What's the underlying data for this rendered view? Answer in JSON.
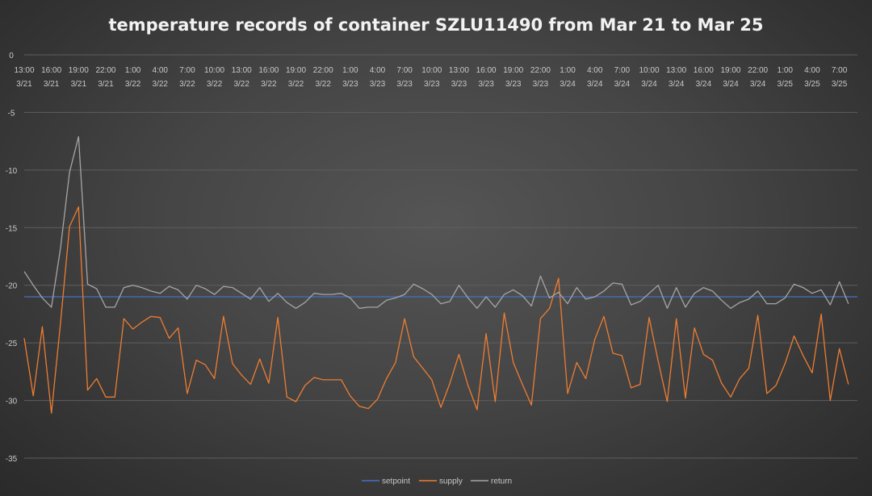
{
  "chart_data": {
    "type": "line",
    "title": "temperature records of container SZLU11490 from Mar 21 to Mar 25",
    "xlabel": "",
    "ylabel": "",
    "ylim": [
      -35,
      0
    ],
    "yticks": [
      0,
      -5,
      -10,
      -15,
      -20,
      -25,
      -30,
      -35
    ],
    "grid": true,
    "legend_position": "bottom",
    "x_tick_labels": [
      {
        "time": "13:00",
        "date": "3/21"
      },
      {
        "time": "16:00",
        "date": "3/21"
      },
      {
        "time": "19:00",
        "date": "3/21"
      },
      {
        "time": "22:00",
        "date": "3/21"
      },
      {
        "time": "1:00",
        "date": "3/22"
      },
      {
        "time": "4:00",
        "date": "3/22"
      },
      {
        "time": "7:00",
        "date": "3/22"
      },
      {
        "time": "10:00",
        "date": "3/22"
      },
      {
        "time": "13:00",
        "date": "3/22"
      },
      {
        "time": "16:00",
        "date": "3/22"
      },
      {
        "time": "19:00",
        "date": "3/22"
      },
      {
        "time": "22:00",
        "date": "3/22"
      },
      {
        "time": "1:00",
        "date": "3/23"
      },
      {
        "time": "4:00",
        "date": "3/23"
      },
      {
        "time": "7:00",
        "date": "3/23"
      },
      {
        "time": "10:00",
        "date": "3/23"
      },
      {
        "time": "13:00",
        "date": "3/23"
      },
      {
        "time": "16:00",
        "date": "3/23"
      },
      {
        "time": "19:00",
        "date": "3/23"
      },
      {
        "time": "22:00",
        "date": "3/23"
      },
      {
        "time": "1:00",
        "date": "3/24"
      },
      {
        "time": "4:00",
        "date": "3/24"
      },
      {
        "time": "7:00",
        "date": "3/24"
      },
      {
        "time": "10:00",
        "date": "3/24"
      },
      {
        "time": "13:00",
        "date": "3/24"
      },
      {
        "time": "16:00",
        "date": "3/24"
      },
      {
        "time": "19:00",
        "date": "3/24"
      },
      {
        "time": "22:00",
        "date": "3/24"
      },
      {
        "time": "1:00",
        "date": "3/25"
      },
      {
        "time": "4:00",
        "date": "3/25"
      },
      {
        "time": "7:00",
        "date": "3/25"
      }
    ],
    "x_tick_every": 3,
    "series": [
      {
        "name": "setpoint",
        "color": "#4472c4",
        "values": [
          -21,
          -21,
          -21,
          -21,
          -21,
          -21,
          -21,
          -21,
          -21,
          -21,
          -21,
          -21,
          -21,
          -21,
          -21,
          -21,
          -21,
          -21,
          -21,
          -21,
          -21,
          -21,
          -21,
          -21,
          -21,
          -21,
          -21,
          -21,
          -21,
          -21,
          -21,
          -21,
          -21,
          -21,
          -21,
          -21,
          -21,
          -21,
          -21,
          -21,
          -21,
          -21,
          -21,
          -21,
          -21,
          -21,
          -21,
          -21,
          -21,
          -21,
          -21,
          -21,
          -21,
          -21,
          -21,
          -21,
          -21,
          -21,
          -21,
          -21,
          -21,
          -21,
          -21,
          -21,
          -21,
          -21,
          -21,
          -21,
          -21,
          -21,
          -21,
          -21,
          -21,
          -21,
          -21,
          -21,
          -21,
          -21,
          -21,
          -21,
          -21,
          -21,
          -21,
          -21,
          -21,
          -21,
          -21,
          -21,
          -21,
          -21,
          -21,
          -21,
          -21
        ]
      },
      {
        "name": "supply",
        "color": "#ed7d31",
        "values": [
          -24.6,
          -29.6,
          -23.6,
          -31.1,
          -23.3,
          -14.9,
          -13.2,
          -29.1,
          -28.1,
          -29.7,
          -29.7,
          -22.9,
          -23.8,
          -23.2,
          -22.7,
          -22.8,
          -24.6,
          -23.7,
          -29.4,
          -26.5,
          -26.9,
          -28.1,
          -22.7,
          -26.8,
          -27.8,
          -28.6,
          -26.4,
          -28.5,
          -22.8,
          -29.7,
          -30.1,
          -28.7,
          -28.0,
          -28.2,
          -28.2,
          -28.2,
          -29.6,
          -30.5,
          -30.7,
          -29.9,
          -28.1,
          -26.7,
          -22.9,
          -26.2,
          -27.2,
          -28.2,
          -30.6,
          -28.5,
          -26.0,
          -28.7,
          -30.8,
          -24.2,
          -30.1,
          -22.4,
          -26.7,
          -28.6,
          -30.4,
          -22.9,
          -22.0,
          -19.4,
          -29.4,
          -26.7,
          -28.1,
          -24.7,
          -22.7,
          -25.9,
          -26.1,
          -28.9,
          -28.6,
          -22.8,
          -26.6,
          -30.1,
          -22.9,
          -29.8,
          -23.7,
          -26.0,
          -26.5,
          -28.5,
          -29.7,
          -28.1,
          -27.2,
          -22.6,
          -29.4,
          -28.7,
          -26.8,
          -24.4,
          -26.1,
          -27.6,
          -22.5,
          -30.0,
          -25.5,
          -28.6
        ]
      },
      {
        "name": "return",
        "color": "#a5a5a5",
        "values": [
          -18.8,
          -20.0,
          -21.1,
          -21.9,
          -16.8,
          -10.2,
          -7.1,
          -19.9,
          -20.3,
          -21.9,
          -21.9,
          -20.2,
          -20.0,
          -20.2,
          -20.5,
          -20.7,
          -20.1,
          -20.4,
          -21.2,
          -20.0,
          -20.3,
          -20.8,
          -20.1,
          -20.2,
          -20.7,
          -21.2,
          -20.2,
          -21.4,
          -20.7,
          -21.5,
          -22.0,
          -21.5,
          -20.7,
          -20.8,
          -20.8,
          -20.7,
          -21.1,
          -22.0,
          -21.9,
          -21.9,
          -21.3,
          -21.1,
          -20.8,
          -19.9,
          -20.3,
          -20.8,
          -21.6,
          -21.4,
          -20.0,
          -21.1,
          -22.0,
          -21.0,
          -21.9,
          -20.8,
          -20.4,
          -20.9,
          -21.8,
          -19.2,
          -21.1,
          -20.6,
          -21.6,
          -20.2,
          -21.2,
          -21.0,
          -20.5,
          -19.8,
          -19.9,
          -21.7,
          -21.4,
          -20.7,
          -20.0,
          -22.0,
          -20.2,
          -21.9,
          -20.7,
          -20.2,
          -20.5,
          -21.3,
          -22.0,
          -21.5,
          -21.2,
          -20.5,
          -21.6,
          -21.6,
          -21.1,
          -19.9,
          -20.2,
          -20.7,
          -20.4,
          -21.7,
          -19.7,
          -21.6
        ]
      }
    ]
  }
}
